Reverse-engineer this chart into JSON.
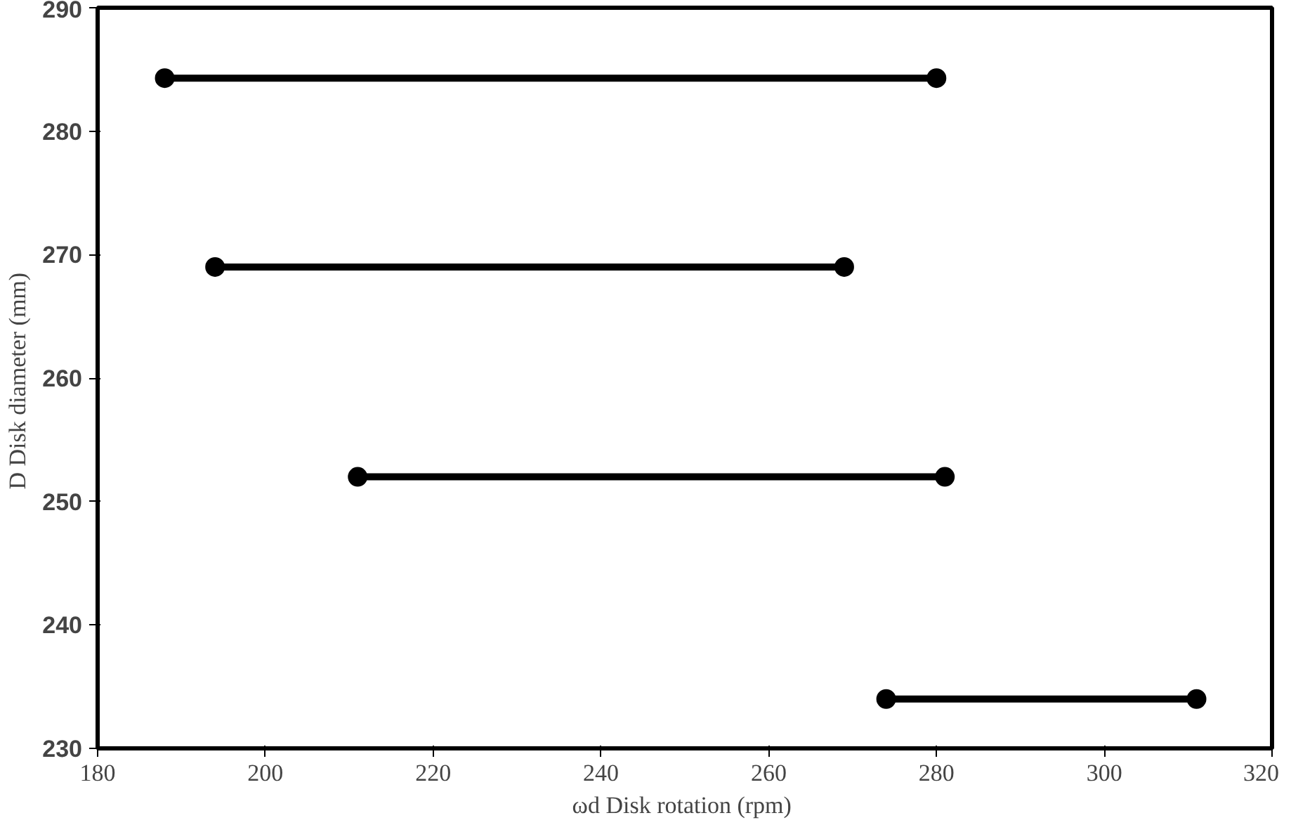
{
  "chart_data": {
    "type": "line",
    "xlabel": "ωd  Disk rotation (rpm)",
    "ylabel": "D  Disk diameter (mm)",
    "xlim": [
      180,
      320
    ],
    "xticks": [
      180,
      200,
      220,
      240,
      260,
      280,
      300,
      320
    ],
    "ylim": [
      230,
      290
    ],
    "yticks": [
      230,
      240,
      250,
      260,
      270,
      280,
      290
    ],
    "grid": false,
    "marker": "circle",
    "line_style": "solid",
    "series": [
      {
        "color": "#000000",
        "x": [
          188,
          280
        ],
        "values": [
          284.3,
          284.3
        ]
      },
      {
        "color": "#000000",
        "x": [
          194,
          269
        ],
        "values": [
          269,
          269
        ]
      },
      {
        "color": "#000000",
        "x": [
          211,
          281
        ],
        "values": [
          252,
          252
        ]
      },
      {
        "color": "#000000",
        "x": [
          274,
          311
        ],
        "values": [
          234,
          234
        ]
      }
    ]
  }
}
